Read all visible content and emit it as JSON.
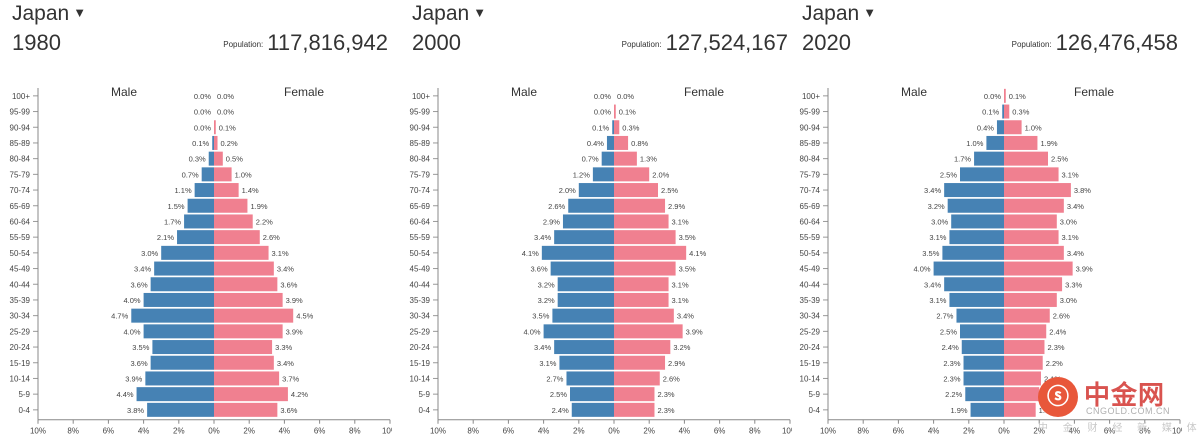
{
  "colors": {
    "male": "#4682b4",
    "female": "#f08090",
    "axis": "#666666",
    "label": "#444444"
  },
  "panels": [
    {
      "country": "Japan",
      "year": "1980",
      "population_label": "Population:",
      "population": "117,816,942"
    },
    {
      "country": "Japan",
      "year": "2000",
      "population_label": "Population:",
      "population": "127,524,167"
    },
    {
      "country": "Japan",
      "year": "2020",
      "population_label": "Population:",
      "population": "126,476,458"
    }
  ],
  "watermark": {
    "logo_glyph": "ⓢ",
    "name": "中金网",
    "url": "CNGOLD.COM.CN",
    "subtitle": "中 金 财 经 新 媒 体"
  },
  "chart_data": [
    {
      "type": "bar",
      "orientation": "horizontal",
      "stacked_diverging": true,
      "title": "1980",
      "male_label": "Male",
      "female_label": "Female",
      "categories": [
        "100+",
        "95-99",
        "90-94",
        "85-89",
        "80-84",
        "75-79",
        "70-74",
        "65-69",
        "60-64",
        "55-59",
        "50-54",
        "45-49",
        "40-44",
        "35-39",
        "30-34",
        "25-29",
        "20-24",
        "15-19",
        "10-14",
        "5-9",
        "0-4"
      ],
      "series": [
        {
          "name": "Male",
          "values": [
            0.0,
            0.0,
            0.0,
            0.1,
            0.3,
            0.7,
            1.1,
            1.5,
            1.7,
            2.1,
            3.0,
            3.4,
            3.6,
            4.0,
            4.7,
            4.0,
            3.5,
            3.6,
            3.9,
            4.4,
            3.8
          ]
        },
        {
          "name": "Female",
          "values": [
            0.0,
            0.0,
            0.1,
            0.2,
            0.5,
            1.0,
            1.4,
            1.9,
            2.2,
            2.6,
            3.1,
            3.4,
            3.6,
            3.9,
            4.5,
            3.9,
            3.3,
            3.4,
            3.7,
            4.2,
            3.6
          ]
        }
      ],
      "xlim": [
        -10,
        10
      ],
      "xticks": [
        "10%",
        "8%",
        "6%",
        "4%",
        "2%",
        "0%",
        "2%",
        "4%",
        "6%",
        "8%",
        "10%"
      ]
    },
    {
      "type": "bar",
      "orientation": "horizontal",
      "stacked_diverging": true,
      "title": "2000",
      "male_label": "Male",
      "female_label": "Female",
      "categories": [
        "100+",
        "95-99",
        "90-94",
        "85-89",
        "80-84",
        "75-79",
        "70-74",
        "65-69",
        "60-64",
        "55-59",
        "50-54",
        "45-49",
        "40-44",
        "35-39",
        "30-34",
        "25-29",
        "20-24",
        "15-19",
        "10-14",
        "5-9",
        "0-4"
      ],
      "series": [
        {
          "name": "Male",
          "values": [
            0.0,
            0.0,
            0.1,
            0.4,
            0.7,
            1.2,
            2.0,
            2.6,
            2.9,
            3.4,
            4.1,
            3.6,
            3.2,
            3.2,
            3.5,
            4.0,
            3.4,
            3.1,
            2.7,
            2.5,
            2.4
          ]
        },
        {
          "name": "Female",
          "values": [
            0.0,
            0.1,
            0.3,
            0.8,
            1.3,
            2.0,
            2.5,
            2.9,
            3.1,
            3.5,
            4.1,
            3.5,
            3.1,
            3.1,
            3.4,
            3.9,
            3.2,
            2.9,
            2.6,
            2.3,
            2.3
          ]
        }
      ],
      "xlim": [
        -10,
        10
      ],
      "xticks": [
        "10%",
        "8%",
        "6%",
        "4%",
        "2%",
        "0%",
        "2%",
        "4%",
        "6%",
        "8%",
        "10%"
      ]
    },
    {
      "type": "bar",
      "orientation": "horizontal",
      "stacked_diverging": true,
      "title": "2020",
      "male_label": "Male",
      "female_label": "Female",
      "categories": [
        "100+",
        "95-99",
        "90-94",
        "85-89",
        "80-84",
        "75-79",
        "70-74",
        "65-69",
        "60-64",
        "55-59",
        "50-54",
        "45-49",
        "40-44",
        "35-39",
        "30-34",
        "25-29",
        "20-24",
        "15-19",
        "10-14",
        "5-9",
        "0-4"
      ],
      "series": [
        {
          "name": "Male",
          "values": [
            0.0,
            0.1,
            0.4,
            1.0,
            1.7,
            2.5,
            3.4,
            3.2,
            3.0,
            3.1,
            3.5,
            4.0,
            3.4,
            3.1,
            2.7,
            2.5,
            2.4,
            2.3,
            2.3,
            2.2,
            1.9
          ]
        },
        {
          "name": "Female",
          "values": [
            0.1,
            0.3,
            1.0,
            1.9,
            2.5,
            3.1,
            3.8,
            3.4,
            3.0,
            3.1,
            3.4,
            3.9,
            3.3,
            3.0,
            2.6,
            2.4,
            2.3,
            2.2,
            2.1,
            2.0,
            1.8
          ]
        }
      ],
      "xlim": [
        -10,
        10
      ],
      "xticks": [
        "10%",
        "8%",
        "6%",
        "4%",
        "2%",
        "0%",
        "2%",
        "4%",
        "6%",
        "8%",
        "10%"
      ]
    }
  ]
}
